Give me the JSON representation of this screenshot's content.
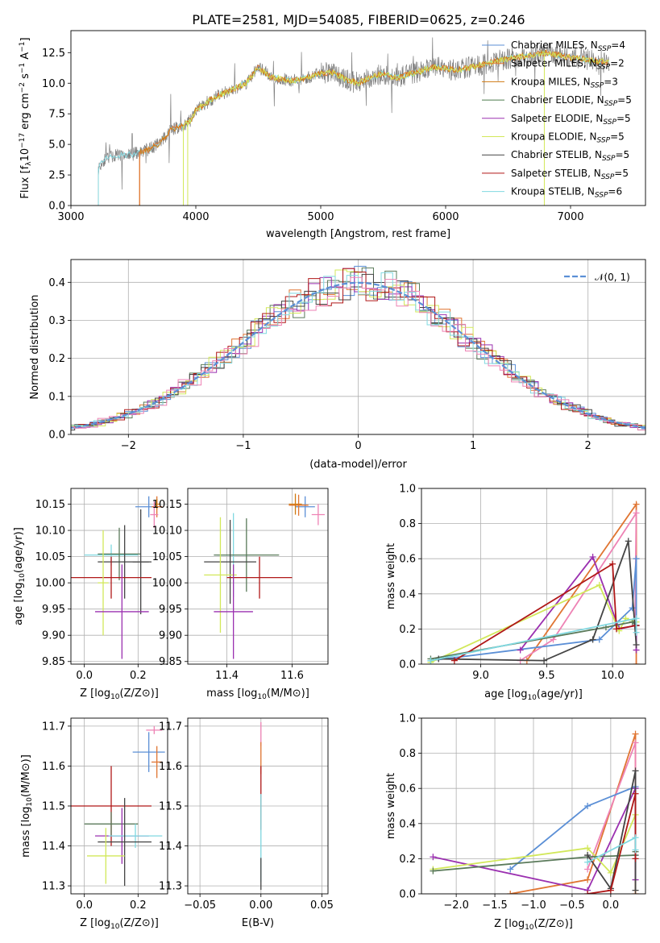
{
  "title": "PLATE=2581, MJD=54085, FIBERID=0625, z=0.246",
  "colors": {
    "Chabrier MILES": "#5b8fd6",
    "Salpeter MILES": "#e07532",
    "Kroupa MILES": "#d07a10",
    "Chabrier ELODIE": "#4c7a4c",
    "Salpeter ELODIE": "#9b30b0",
    "Kroupa ELODIE": "#d2e85a",
    "Chabrier STELIB": "#444444",
    "Salpeter STELIB": "#b01818",
    "Kroupa STELIB": "#80d8e0",
    "Pink": "#ee82b4",
    "Green2": "#5a7a5a"
  },
  "chart_data": [
    {
      "id": "spectrum",
      "type": "line",
      "title": "PLATE=2581, MJD=54085, FIBERID=0625, z=0.246",
      "xlabel": "wavelength [Angstrom, rest frame]",
      "ylabel": "Flux [f_λ10^-17 erg cm^-2 s^-1 A^-1]",
      "xlim": [
        3000,
        7600
      ],
      "ylim": [
        0,
        14.3
      ],
      "xticks": [
        3000,
        4000,
        5000,
        6000,
        7000
      ],
      "yticks": [
        0.0,
        2.5,
        5.0,
        7.5,
        10.0,
        12.5
      ],
      "xtick_labels": [
        "3000",
        "4000",
        "5000",
        "6000",
        "7000"
      ],
      "ytick_labels": [
        "0.0",
        "2.5",
        "5.0",
        "7.5",
        "10.0",
        "12.5"
      ],
      "legend_placement": "right",
      "legend": [
        {
          "label": "Chabrier MILES, N",
          "sub": "SSP",
          "tail": "=4",
          "color": "#5b8fd6"
        },
        {
          "label": "Salpeter MILES, N",
          "sub": "SSP",
          "tail": "=2",
          "color": "#e07532"
        },
        {
          "label": "Kroupa MILES, N",
          "sub": "SSP",
          "tail": "=3",
          "color": "#d07a10"
        },
        {
          "label": "Chabrier ELODIE, N",
          "sub": "SSP",
          "tail": "=5",
          "color": "#4c7a4c"
        },
        {
          "label": "Salpeter ELODIE, N",
          "sub": "SSP",
          "tail": "=5",
          "color": "#9b30b0"
        },
        {
          "label": "Kroupa ELODIE, N",
          "sub": "SSP",
          "tail": "=5",
          "color": "#d2e85a"
        },
        {
          "label": "Chabrier STELIB, N",
          "sub": "SSP",
          "tail": "=5",
          "color": "#444444"
        },
        {
          "label": "Salpeter STELIB, N",
          "sub": "SSP",
          "tail": "=5",
          "color": "#b01818"
        },
        {
          "label": "Kroupa STELIB, N",
          "sub": "SSP",
          "tail": "=6",
          "color": "#80d8e0"
        }
      ],
      "continuum": {
        "x": [
          3220,
          3260,
          3300,
          3400,
          3500,
          3600,
          3700,
          3800,
          3900,
          3960,
          4000,
          4100,
          4200,
          4300,
          4400,
          4500,
          4600,
          4700,
          4800,
          4900,
          5000,
          5100,
          5200,
          5300,
          5400,
          5500,
          5600,
          5700,
          5800,
          5900,
          6000,
          6100,
          6200,
          6300,
          6400,
          6500,
          6600,
          6700,
          6800,
          6900,
          7000,
          7100,
          7200,
          7300
        ],
        "y": [
          3.0,
          3.7,
          4.0,
          4.1,
          4.2,
          4.5,
          5.0,
          6.2,
          6.5,
          7.0,
          7.8,
          8.5,
          9.1,
          9.5,
          10.0,
          11.3,
          10.5,
          10.3,
          10.2,
          10.5,
          10.8,
          10.9,
          10.3,
          10.0,
          10.5,
          10.8,
          10.4,
          10.7,
          11.0,
          11.3,
          11.2,
          11.1,
          11.3,
          11.5,
          11.8,
          12.0,
          12.2,
          12.3,
          12.5,
          12.3,
          12.1,
          12.0,
          11.8,
          11.7
        ]
      },
      "model_start": {
        "x": 3550,
        "y": 5.3
      }
    },
    {
      "id": "residuals",
      "type": "histogram",
      "xlabel": "(data-model)/error",
      "ylabel": "Normed distribution",
      "xlim": [
        -2.5,
        2.5
      ],
      "ylim": [
        0,
        0.46
      ],
      "xticks": [
        -2,
        -1,
        0,
        1,
        2
      ],
      "yticks": [
        0.0,
        0.1,
        0.2,
        0.3,
        0.4
      ],
      "xtick_labels": [
        "−2",
        "−1",
        "0",
        "1",
        "2"
      ],
      "ytick_labels": [
        "0.0",
        "0.1",
        "0.2",
        "0.3",
        "0.4"
      ],
      "grid": true,
      "legend_placement": "top-right",
      "reference": {
        "label": "𝒩(0, 1)",
        "mean": 0,
        "sigma": 1,
        "color": "#5b8fd6"
      },
      "bin_width": 0.1
    },
    {
      "id": "age-vs-Z",
      "type": "errorbar",
      "xlabel": "Z [log10(Z/Z⊙)]",
      "ylabel": "age  [log10(age/yr)]",
      "xlim": [
        -0.05,
        0.31
      ],
      "ylim": [
        9.845,
        10.18
      ],
      "xticks": [
        0.0,
        0.2
      ],
      "xtick_labels": [
        "0.0",
        "0.2"
      ],
      "yticks": [
        9.85,
        9.9,
        9.95,
        10.0,
        10.05,
        10.1,
        10.15
      ],
      "ytick_labels": [
        "9.85",
        "9.90",
        "9.95",
        "10.00",
        "10.05",
        "10.10",
        "10.15"
      ],
      "grid": true,
      "points": [
        {
          "x": 0.24,
          "y": 10.145,
          "xerr": 0.05,
          "yerr": 0.02,
          "color": "#5b8fd6"
        },
        {
          "x": 0.27,
          "y": 10.145,
          "xerr": 0.02,
          "yerr": 0.02,
          "color": "#e07532"
        },
        {
          "x": 0.27,
          "y": 10.15,
          "xerr": 0.01,
          "yerr": 0.01,
          "color": "#d07a10"
        },
        {
          "x": 0.26,
          "y": 10.13,
          "xerr": 0.015,
          "yerr": 0.025,
          "color": "#ee82b4"
        },
        {
          "x": 0.1,
          "y": 10.053,
          "xerr": 0.1,
          "yerr": 0.02,
          "color": "#80d8e0"
        },
        {
          "x": 0.13,
          "y": 10.055,
          "xerr": 0.08,
          "yerr": 0.05,
          "color": "#5a7a5a"
        },
        {
          "x": 0.15,
          "y": 10.04,
          "xerr": 0.1,
          "yerr": 0.07,
          "color": "#444444"
        },
        {
          "x": 0.21,
          "y": 10.04,
          "xerr": 0.03,
          "yerr": 0.1,
          "color": "#444444"
        },
        {
          "x": 0.1,
          "y": 10.01,
          "xerr": 0.15,
          "yerr": 0.04,
          "color": "#b01818"
        },
        {
          "x": 0.07,
          "y": 10.0,
          "xerr": 0.02,
          "yerr": 0.1,
          "color": "#d2e85a"
        },
        {
          "x": 0.14,
          "y": 9.945,
          "xerr": 0.1,
          "yerr": 0.09,
          "color": "#9b30b0"
        }
      ]
    },
    {
      "id": "age-vs-mass",
      "type": "errorbar",
      "xlabel": "mass [log10(M/M⊙)]",
      "ylabel": "",
      "xlim": [
        11.28,
        11.71
      ],
      "ylim": [
        9.845,
        10.18
      ],
      "xticks": [
        11.4,
        11.6
      ],
      "xtick_labels": [
        "11.4",
        "11.6"
      ],
      "yticks": [
        9.85,
        9.9,
        9.95,
        10.0,
        10.05,
        10.1,
        10.15
      ],
      "ytick_labels": [
        "9.85",
        "9.90",
        "9.95",
        "10.00",
        "10.05",
        "10.10",
        "10.15"
      ],
      "grid": true,
      "points": [
        {
          "x": 11.64,
          "y": 10.145,
          "xerr": 0.03,
          "yerr": 0.02,
          "color": "#5b8fd6"
        },
        {
          "x": 11.62,
          "y": 10.148,
          "xerr": 0.03,
          "yerr": 0.02,
          "color": "#e07532"
        },
        {
          "x": 11.61,
          "y": 10.15,
          "xerr": 0.02,
          "yerr": 0.02,
          "color": "#d07a10"
        },
        {
          "x": 11.68,
          "y": 10.13,
          "xerr": 0.02,
          "yerr": 0.02,
          "color": "#ee82b4"
        },
        {
          "x": 11.42,
          "y": 10.053,
          "xerr": 0.05,
          "yerr": 0.08,
          "color": "#80d8e0"
        },
        {
          "x": 11.46,
          "y": 10.053,
          "xerr": 0.1,
          "yerr": 0.07,
          "color": "#5a7a5a"
        },
        {
          "x": 11.41,
          "y": 10.04,
          "xerr": 0.08,
          "yerr": 0.08,
          "color": "#444444"
        },
        {
          "x": 11.5,
          "y": 10.01,
          "xerr": 0.1,
          "yerr": 0.04,
          "color": "#b01818"
        },
        {
          "x": 11.38,
          "y": 10.015,
          "xerr": 0.05,
          "yerr": 0.11,
          "color": "#d2e85a"
        },
        {
          "x": 11.42,
          "y": 9.945,
          "xerr": 0.06,
          "yerr": 0.09,
          "color": "#9b30b0"
        }
      ]
    },
    {
      "id": "weight-vs-age",
      "type": "line",
      "xlabel": "age  [log10(age/yr)]",
      "ylabel": "mass weight",
      "xlim": [
        8.55,
        10.25
      ],
      "ylim": [
        0.0,
        1.0
      ],
      "xticks": [
        9.0,
        9.5,
        10.0
      ],
      "xtick_labels": [
        "9.0",
        "9.5",
        "10.0"
      ],
      "yticks": [
        0.0,
        0.2,
        0.4,
        0.6,
        0.8,
        1.0
      ],
      "ytick_labels": [
        "0.0",
        "0.2",
        "0.4",
        "0.6",
        "0.8",
        "1.0"
      ],
      "grid": true,
      "series": [
        {
          "color": "#e07532",
          "x": [
            9.35,
            10.18,
            10.18
          ],
          "y": [
            0.02,
            0.91,
            0.0
          ]
        },
        {
          "color": "#ee82b4",
          "x": [
            9.3,
            9.55,
            10.18,
            10.17
          ],
          "y": [
            0.02,
            0.14,
            0.86,
            0.22
          ]
        },
        {
          "color": "#5b8fd6",
          "x": [
            8.62,
            9.9,
            10.15,
            10.18,
            10.18
          ],
          "y": [
            0.02,
            0.14,
            0.32,
            0.6,
            0.22
          ]
        },
        {
          "color": "#9b30b0",
          "x": [
            9.3,
            9.85,
            10.05,
            10.18,
            10.18
          ],
          "y": [
            0.08,
            0.61,
            0.2,
            0.22,
            0.08
          ]
        },
        {
          "color": "#d2e85a",
          "x": [
            8.62,
            9.9,
            10.05,
            10.1,
            10.18
          ],
          "y": [
            0.01,
            0.45,
            0.19,
            0.26,
            0.24
          ]
        },
        {
          "color": "#5a7a5a",
          "x": [
            8.62,
            9.95,
            10.15,
            10.18
          ],
          "y": [
            0.03,
            0.21,
            0.24,
            0.22
          ]
        },
        {
          "color": "#444444",
          "x": [
            8.68,
            9.48,
            9.85,
            10.12,
            10.18
          ],
          "y": [
            0.03,
            0.02,
            0.14,
            0.7,
            0.11
          ]
        },
        {
          "color": "#b01818",
          "x": [
            8.8,
            10.0,
            10.03,
            10.18
          ],
          "y": [
            0.02,
            0.57,
            0.2,
            0.22
          ]
        },
        {
          "color": "#80d8e0",
          "x": [
            8.62,
            10.18,
            10.18
          ],
          "y": [
            0.02,
            0.26,
            0.18
          ]
        }
      ]
    },
    {
      "id": "mass-vs-Z",
      "type": "errorbar",
      "xlabel": "Z [log10(Z/Z⊙)]",
      "ylabel": "mass [log10(M/M⊙)]",
      "xlim": [
        -0.05,
        0.31
      ],
      "ylim": [
        11.28,
        11.72
      ],
      "xticks": [
        0.0,
        0.2
      ],
      "xtick_labels": [
        "0.0",
        "0.2"
      ],
      "yticks": [
        11.3,
        11.4,
        11.5,
        11.6,
        11.7
      ],
      "ytick_labels": [
        "11.3",
        "11.4",
        "11.5",
        "11.6",
        "11.7"
      ],
      "grid": true,
      "points": [
        {
          "x": 0.26,
          "y": 11.69,
          "xerr": 0.03,
          "yerr": 0.01,
          "color": "#ee82b4"
        },
        {
          "x": 0.24,
          "y": 11.635,
          "xerr": 0.06,
          "yerr": 0.05,
          "color": "#5b8fd6"
        },
        {
          "x": 0.27,
          "y": 11.61,
          "xerr": 0.02,
          "yerr": 0.04,
          "color": "#e07532"
        },
        {
          "x": 0.1,
          "y": 11.5,
          "xerr": 0.15,
          "yerr": 0.1,
          "color": "#b01818"
        },
        {
          "x": 0.1,
          "y": 11.455,
          "xerr": 0.1,
          "yerr": 0.03,
          "color": "#5a7a5a"
        },
        {
          "x": 0.14,
          "y": 11.425,
          "xerr": 0.1,
          "yerr": 0.07,
          "color": "#9b30b0"
        },
        {
          "x": 0.19,
          "y": 11.425,
          "xerr": 0.1,
          "yerr": 0.03,
          "color": "#80d8e0"
        },
        {
          "x": 0.15,
          "y": 11.41,
          "xerr": 0.1,
          "yerr": 0.11,
          "color": "#444444"
        },
        {
          "x": 0.08,
          "y": 11.375,
          "xerr": 0.07,
          "yerr": 0.07,
          "color": "#d2e85a"
        }
      ]
    },
    {
      "id": "mass-vs-EBV",
      "type": "errorbar",
      "xlabel": "E(B-V)",
      "ylabel": "",
      "xlim": [
        -0.06,
        0.055
      ],
      "ylim": [
        11.28,
        11.72
      ],
      "xticks": [
        -0.05,
        0.0,
        0.05
      ],
      "xtick_labels": [
        "−0.05",
        "0.00",
        "0.05"
      ],
      "yticks": [
        11.3,
        11.4,
        11.5,
        11.6,
        11.7
      ],
      "ytick_labels": [
        "11.3",
        "11.4",
        "11.5",
        "11.6",
        "11.7"
      ],
      "grid": true,
      "points": [
        {
          "x": 0.0,
          "y": 11.68,
          "xerr": 0,
          "yerr": 0.03,
          "color": "#ee82b4"
        },
        {
          "x": 0.0,
          "y": 11.62,
          "xerr": 0,
          "yerr": 0.04,
          "color": "#e07532"
        },
        {
          "x": 0.0,
          "y": 11.52,
          "xerr": 0,
          "yerr": 0.08,
          "color": "#b01818"
        },
        {
          "x": 0.0,
          "y": 11.42,
          "xerr": 0,
          "yerr": 0.11,
          "color": "#80d8e0"
        },
        {
          "x": 0.0,
          "y": 11.33,
          "xerr": 0,
          "yerr": 0.04,
          "color": "#444444"
        }
      ]
    },
    {
      "id": "weight-vs-Z",
      "type": "line",
      "xlabel": "Z [log10(Z/Z⊙)]",
      "ylabel": "mass weight",
      "xlim": [
        -2.45,
        0.45
      ],
      "ylim": [
        0.0,
        1.0
      ],
      "xticks": [
        -2.0,
        -1.5,
        -1.0,
        -0.5,
        0.0
      ],
      "xtick_labels": [
        "−2.0",
        "−1.5",
        "−1.0",
        "−0.5",
        "0.0"
      ],
      "yticks": [
        0.0,
        0.2,
        0.4,
        0.6,
        0.8,
        1.0
      ],
      "ytick_labels": [
        "0.0",
        "0.2",
        "0.4",
        "0.6",
        "0.8",
        "1.0"
      ],
      "grid": true,
      "series": [
        {
          "color": "#e07532",
          "x": [
            -1.3,
            -0.3,
            0.32,
            0.32
          ],
          "y": [
            0.0,
            0.08,
            0.91,
            0.0
          ]
        },
        {
          "color": "#ee82b4",
          "x": [
            -0.3,
            0.32,
            0.32
          ],
          "y": [
            0.14,
            0.86,
            0.22
          ]
        },
        {
          "color": "#5b8fd6",
          "x": [
            -1.3,
            -0.3,
            0.32,
            0.32
          ],
          "y": [
            0.14,
            0.5,
            0.61,
            0.22
          ]
        },
        {
          "color": "#9b30b0",
          "x": [
            -2.3,
            -0.3,
            0.32,
            0.32
          ],
          "y": [
            0.21,
            0.02,
            0.6,
            0.08
          ]
        },
        {
          "color": "#d2e85a",
          "x": [
            -2.3,
            -0.3,
            0.0,
            0.32
          ],
          "y": [
            0.14,
            0.26,
            0.12,
            0.45
          ]
        },
        {
          "color": "#5a7a5a",
          "x": [
            -2.3,
            -0.3,
            0.32,
            0.32
          ],
          "y": [
            0.13,
            0.21,
            0.22,
            0.24
          ]
        },
        {
          "color": "#444444",
          "x": [
            -0.3,
            0.0,
            0.32,
            0.32
          ],
          "y": [
            0.22,
            0.03,
            0.7,
            0.02
          ]
        },
        {
          "color": "#b01818",
          "x": [
            -0.3,
            0.0,
            0.32,
            0.32
          ],
          "y": [
            0.0,
            0.02,
            0.57,
            0.2
          ]
        },
        {
          "color": "#80d8e0",
          "x": [
            -0.3,
            0.32,
            0.32
          ],
          "y": [
            0.18,
            0.32,
            0.25
          ]
        }
      ]
    }
  ]
}
